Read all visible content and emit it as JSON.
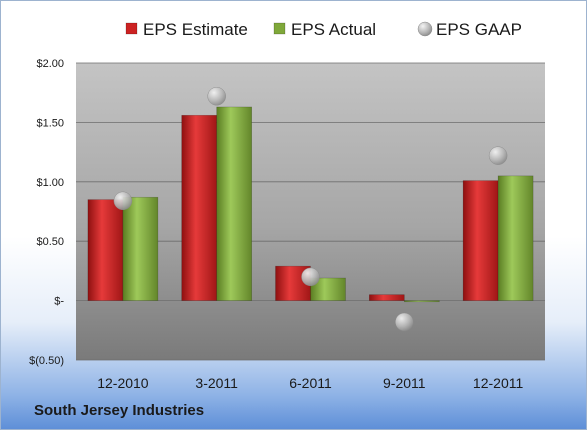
{
  "company": "South Jersey Industries",
  "legend": [
    {
      "label": "EPS Estimate",
      "color": "#cc2222",
      "marker": "square"
    },
    {
      "label": "EPS Actual",
      "color": "#7fa83a",
      "marker": "square"
    },
    {
      "label": "EPS GAAP",
      "color": "#b8b8b8",
      "marker": "circle"
    }
  ],
  "chart_data": {
    "type": "bar",
    "categories": [
      "12-2010",
      "3-2011",
      "6-2011",
      "9-2011",
      "12-2011"
    ],
    "series": [
      {
        "name": "EPS Estimate",
        "type": "bar",
        "color": "#cc2222",
        "values": [
          0.85,
          1.56,
          0.29,
          0.05,
          1.01
        ]
      },
      {
        "name": "EPS Actual",
        "type": "bar",
        "color": "#7fa83a",
        "values": [
          0.87,
          1.63,
          0.19,
          -0.01,
          1.05
        ]
      },
      {
        "name": "EPS GAAP",
        "type": "scatter",
        "color": "#b8b8b8",
        "values": [
          0.84,
          1.72,
          0.2,
          -0.18,
          1.22
        ]
      }
    ],
    "yticks": [
      {
        "value": 2.0,
        "label": "$2.00"
      },
      {
        "value": 1.5,
        "label": "$1.50"
      },
      {
        "value": 1.0,
        "label": "$1.00"
      },
      {
        "value": 0.5,
        "label": "$0.50"
      },
      {
        "value": 0.0,
        "label": "$-"
      },
      {
        "value": -0.5,
        "label": "$(0.50)"
      }
    ],
    "ylim": [
      -0.5,
      2.0
    ],
    "grid": true,
    "legend_position": "top"
  }
}
